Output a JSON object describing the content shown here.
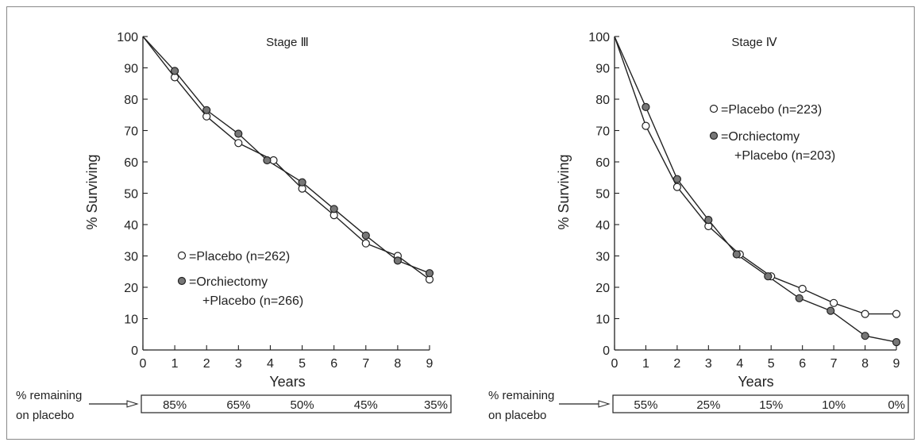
{
  "chart_data": [
    {
      "type": "line",
      "title": "Stage Ⅲ",
      "xlabel": "Years",
      "ylabel": "% Surviving",
      "x": [
        0,
        1,
        2,
        3,
        4,
        5,
        6,
        7,
        8,
        9
      ],
      "xticks": [
        "0",
        "1",
        "2",
        "3",
        "4",
        "5",
        "6",
        "7",
        "8",
        "9"
      ],
      "yticks": [
        "0",
        "10",
        "20",
        "30",
        "40",
        "50",
        "60",
        "70",
        "80",
        "90",
        "100"
      ],
      "xlim": [
        0,
        9
      ],
      "ylim": [
        0,
        100
      ],
      "grid": false,
      "legend_position": "lower-left",
      "legend": {
        "open_label": "=Placebo (n=262)",
        "filled_label_1": "=Orchiectomy",
        "filled_label_2": "+Placebo (n=266)"
      },
      "series": [
        {
          "name": "Placebo (n=262)",
          "marker": "open",
          "points": [
            [
              0,
              100
            ],
            [
              1,
              87
            ],
            [
              2,
              74.5
            ],
            [
              3,
              66
            ],
            [
              4.1,
              60.5
            ],
            [
              5,
              51.5
            ],
            [
              6,
              43
            ],
            [
              7,
              34
            ],
            [
              8,
              30
            ],
            [
              9,
              22.5
            ]
          ]
        },
        {
          "name": "Orchiectomy + Placebo (n=266)",
          "marker": "filled",
          "points": [
            [
              0,
              100
            ],
            [
              1,
              89
            ],
            [
              2,
              76.5
            ],
            [
              3,
              69
            ],
            [
              3.9,
              60.5
            ],
            [
              5,
              53.5
            ],
            [
              6,
              45
            ],
            [
              7,
              36.5
            ],
            [
              8,
              28.5
            ],
            [
              9,
              24.5
            ]
          ]
        }
      ],
      "remaining": {
        "label_1": "% remaining",
        "label_2": "on placebo",
        "values": [
          "85%",
          "65%",
          "50%",
          "45%",
          "35%"
        ],
        "positions": [
          1,
          3,
          5,
          7,
          9
        ]
      }
    },
    {
      "type": "line",
      "title": "Stage Ⅳ",
      "xlabel": "Years",
      "ylabel": "% Surviving",
      "x": [
        0,
        1,
        2,
        3,
        4,
        5,
        6,
        7,
        8,
        9
      ],
      "xticks": [
        "0",
        "1",
        "2",
        "3",
        "4",
        "5",
        "6",
        "7",
        "8",
        "9"
      ],
      "yticks": [
        "0",
        "10",
        "20",
        "30",
        "40",
        "50",
        "60",
        "70",
        "80",
        "90",
        "100"
      ],
      "xlim": [
        0,
        9
      ],
      "ylim": [
        0,
        100
      ],
      "grid": false,
      "legend_position": "upper-right",
      "legend": {
        "open_label": "=Placebo (n=223)",
        "filled_label_1": "=Orchiectomy",
        "filled_label_2": "+Placebo (n=203)"
      },
      "series": [
        {
          "name": "Placebo (n=223)",
          "marker": "open",
          "points": [
            [
              0,
              100
            ],
            [
              1,
              71.5
            ],
            [
              2,
              52
            ],
            [
              3,
              39.5
            ],
            [
              4,
              30.5
            ],
            [
              5,
              23.5
            ],
            [
              6,
              19.5
            ],
            [
              7,
              15
            ],
            [
              8,
              11.5
            ],
            [
              9,
              11.5
            ]
          ]
        },
        {
          "name": "Orchiectomy + Placebo (n=203)",
          "marker": "filled",
          "points": [
            [
              0,
              100
            ],
            [
              1,
              77.5
            ],
            [
              2,
              54.5
            ],
            [
              3,
              41.5
            ],
            [
              3.9,
              30.5
            ],
            [
              4.9,
              23.5
            ],
            [
              5.9,
              16.5
            ],
            [
              6.9,
              12.5
            ],
            [
              8,
              4.5
            ],
            [
              9,
              2.5
            ]
          ]
        }
      ],
      "remaining": {
        "label_1": "% remaining",
        "label_2": "on placebo",
        "values": [
          "55%",
          "25%",
          "15%",
          "10%",
          "0%"
        ],
        "positions": [
          1,
          3,
          5,
          7,
          9
        ]
      }
    }
  ]
}
